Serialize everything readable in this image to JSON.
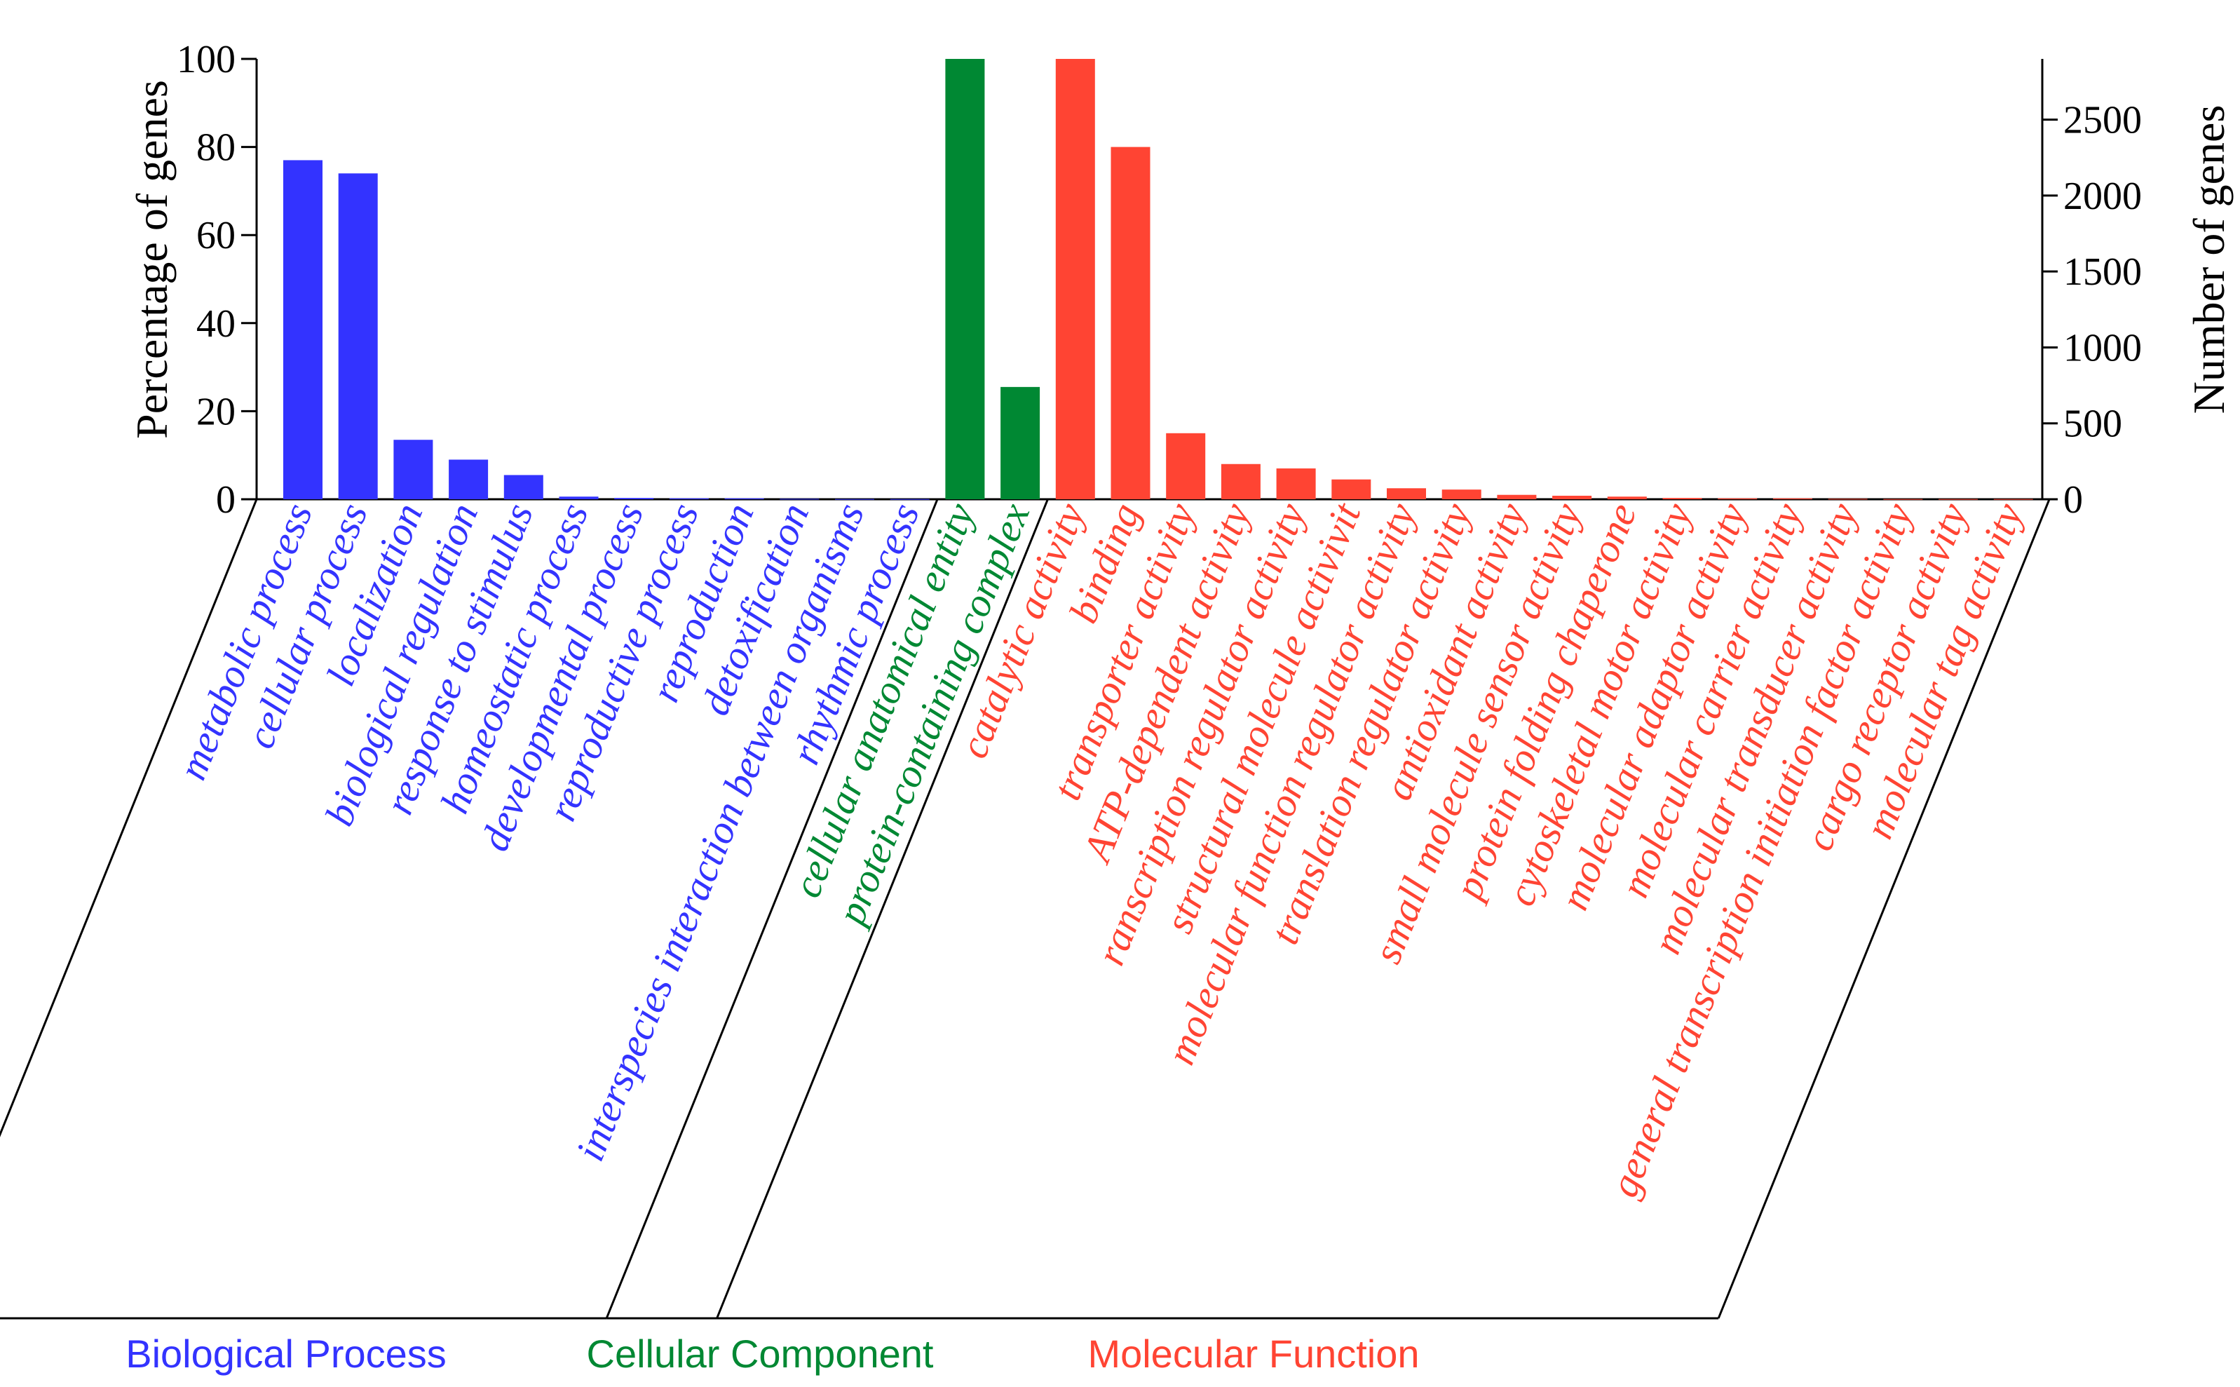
{
  "chart_data": {
    "type": "bar",
    "title": "",
    "ylabel_left": "Percentage of  genes",
    "ylabel_right": "Number of genes",
    "ylim_left": [
      0,
      100
    ],
    "ylim_right": [
      0,
      2900
    ],
    "yticks_left": [
      "0",
      "20",
      "40",
      "60",
      "80",
      "100"
    ],
    "yticks_right": [
      "0",
      "500",
      "1000",
      "1500",
      "2000",
      "2500"
    ],
    "colors": {
      "biological_process": "#3333ff",
      "cellular_component": "#008833",
      "molecular_function": "#ff4433"
    },
    "groups": [
      {
        "name": "Biological Process",
        "key": "biological_process",
        "categories": [
          "metabolic process",
          "cellular process",
          "localization",
          "biological regulation",
          "response to stimulus",
          "homeostatic process",
          "developmental process",
          "reproductive process",
          "reproduction",
          "detoxification",
          "interspecies interaction between organisms",
          "rhythmic process"
        ],
        "values": [
          77,
          74,
          13.5,
          9,
          5.5,
          0.6,
          0.3,
          0.2,
          0.2,
          0.1,
          0.05,
          0.05
        ]
      },
      {
        "name": "Cellular Component",
        "key": "cellular_component",
        "categories": [
          "cellular anatomical entity",
          "protein-containing complex"
        ],
        "values": [
          100,
          25.5
        ]
      },
      {
        "name": "Molecular Function",
        "key": "molecular_function",
        "categories": [
          "catalytic activity",
          "binding",
          "transporter activity",
          "ATP-dependent activity",
          "ranscription regulator activity",
          "structural molecule activivit",
          "molecular function regulator activity",
          "translation regulator activity",
          "antioxidant activity",
          "small molecule sensor activity",
          "protein folding chaperone",
          "cytoskeletal motor activity",
          "molecular adaptor activity",
          "molecular carrier activity",
          "molecular transducer activity",
          "general transcription initiation factor activity",
          "cargo receptor activity",
          "molecular tag activity"
        ],
        "values": [
          100,
          80,
          15,
          8,
          7,
          4.5,
          2.5,
          2.2,
          1,
          0.8,
          0.6,
          0.3,
          0.2,
          0.2,
          0.1,
          0.05,
          0.05,
          0.05
        ]
      }
    ]
  }
}
